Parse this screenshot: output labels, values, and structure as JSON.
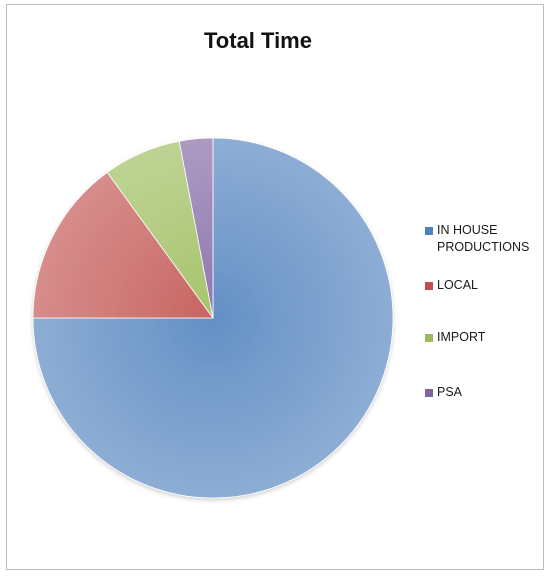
{
  "chart_data": {
    "type": "pie",
    "title": "Total Time",
    "categories": [
      "IN HOUSE PRODUCTIONS",
      "LOCAL",
      "IMPORT",
      "PSA"
    ],
    "values": [
      75,
      15,
      7,
      3
    ],
    "colors": [
      "#4f81bd",
      "#c0504d",
      "#9bbb59",
      "#8064a2"
    ],
    "legend_position": "right",
    "start_angle_deg": 0,
    "direction": "clockwise"
  },
  "legend": {
    "items": [
      {
        "label": "IN HOUSE\nPRODUCTIONS",
        "color": "#4f81bd"
      },
      {
        "label": "LOCAL",
        "color": "#c0504d"
      },
      {
        "label": "IMPORT",
        "color": "#9bbb59"
      },
      {
        "label": "PSA",
        "color": "#8064a2"
      }
    ]
  }
}
